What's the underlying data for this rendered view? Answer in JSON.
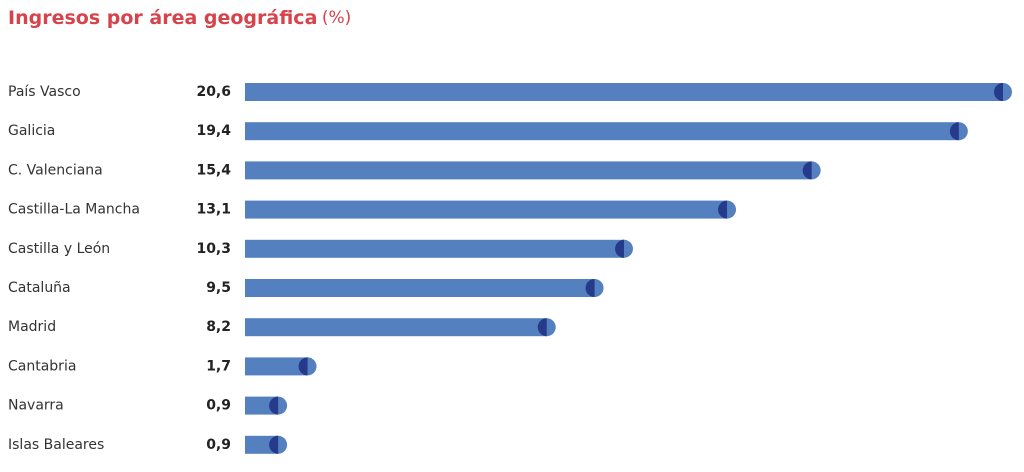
{
  "chart_data": {
    "type": "bar",
    "orientation": "horizontal",
    "title": "Ingresos por área geográfica",
    "unit_label": "(%)",
    "categories": [
      "País Vasco",
      "Galicia",
      "C. Valenciana",
      "Castilla-La Mancha",
      "Castilla y León",
      "Cataluña",
      "Madrid",
      "Cantabria",
      "Navarra",
      "Islas Baleares"
    ],
    "values": [
      20.6,
      19.4,
      15.4,
      13.1,
      10.3,
      9.5,
      8.2,
      1.7,
      0.9,
      0.9
    ],
    "value_labels": [
      "20,6",
      "19,4",
      "15,4",
      "13,1",
      "10,3",
      "9,5",
      "8,2",
      "1,7",
      "0,9",
      "0,9"
    ],
    "color": "#5580c0",
    "cap_color": "#263a8c"
  }
}
